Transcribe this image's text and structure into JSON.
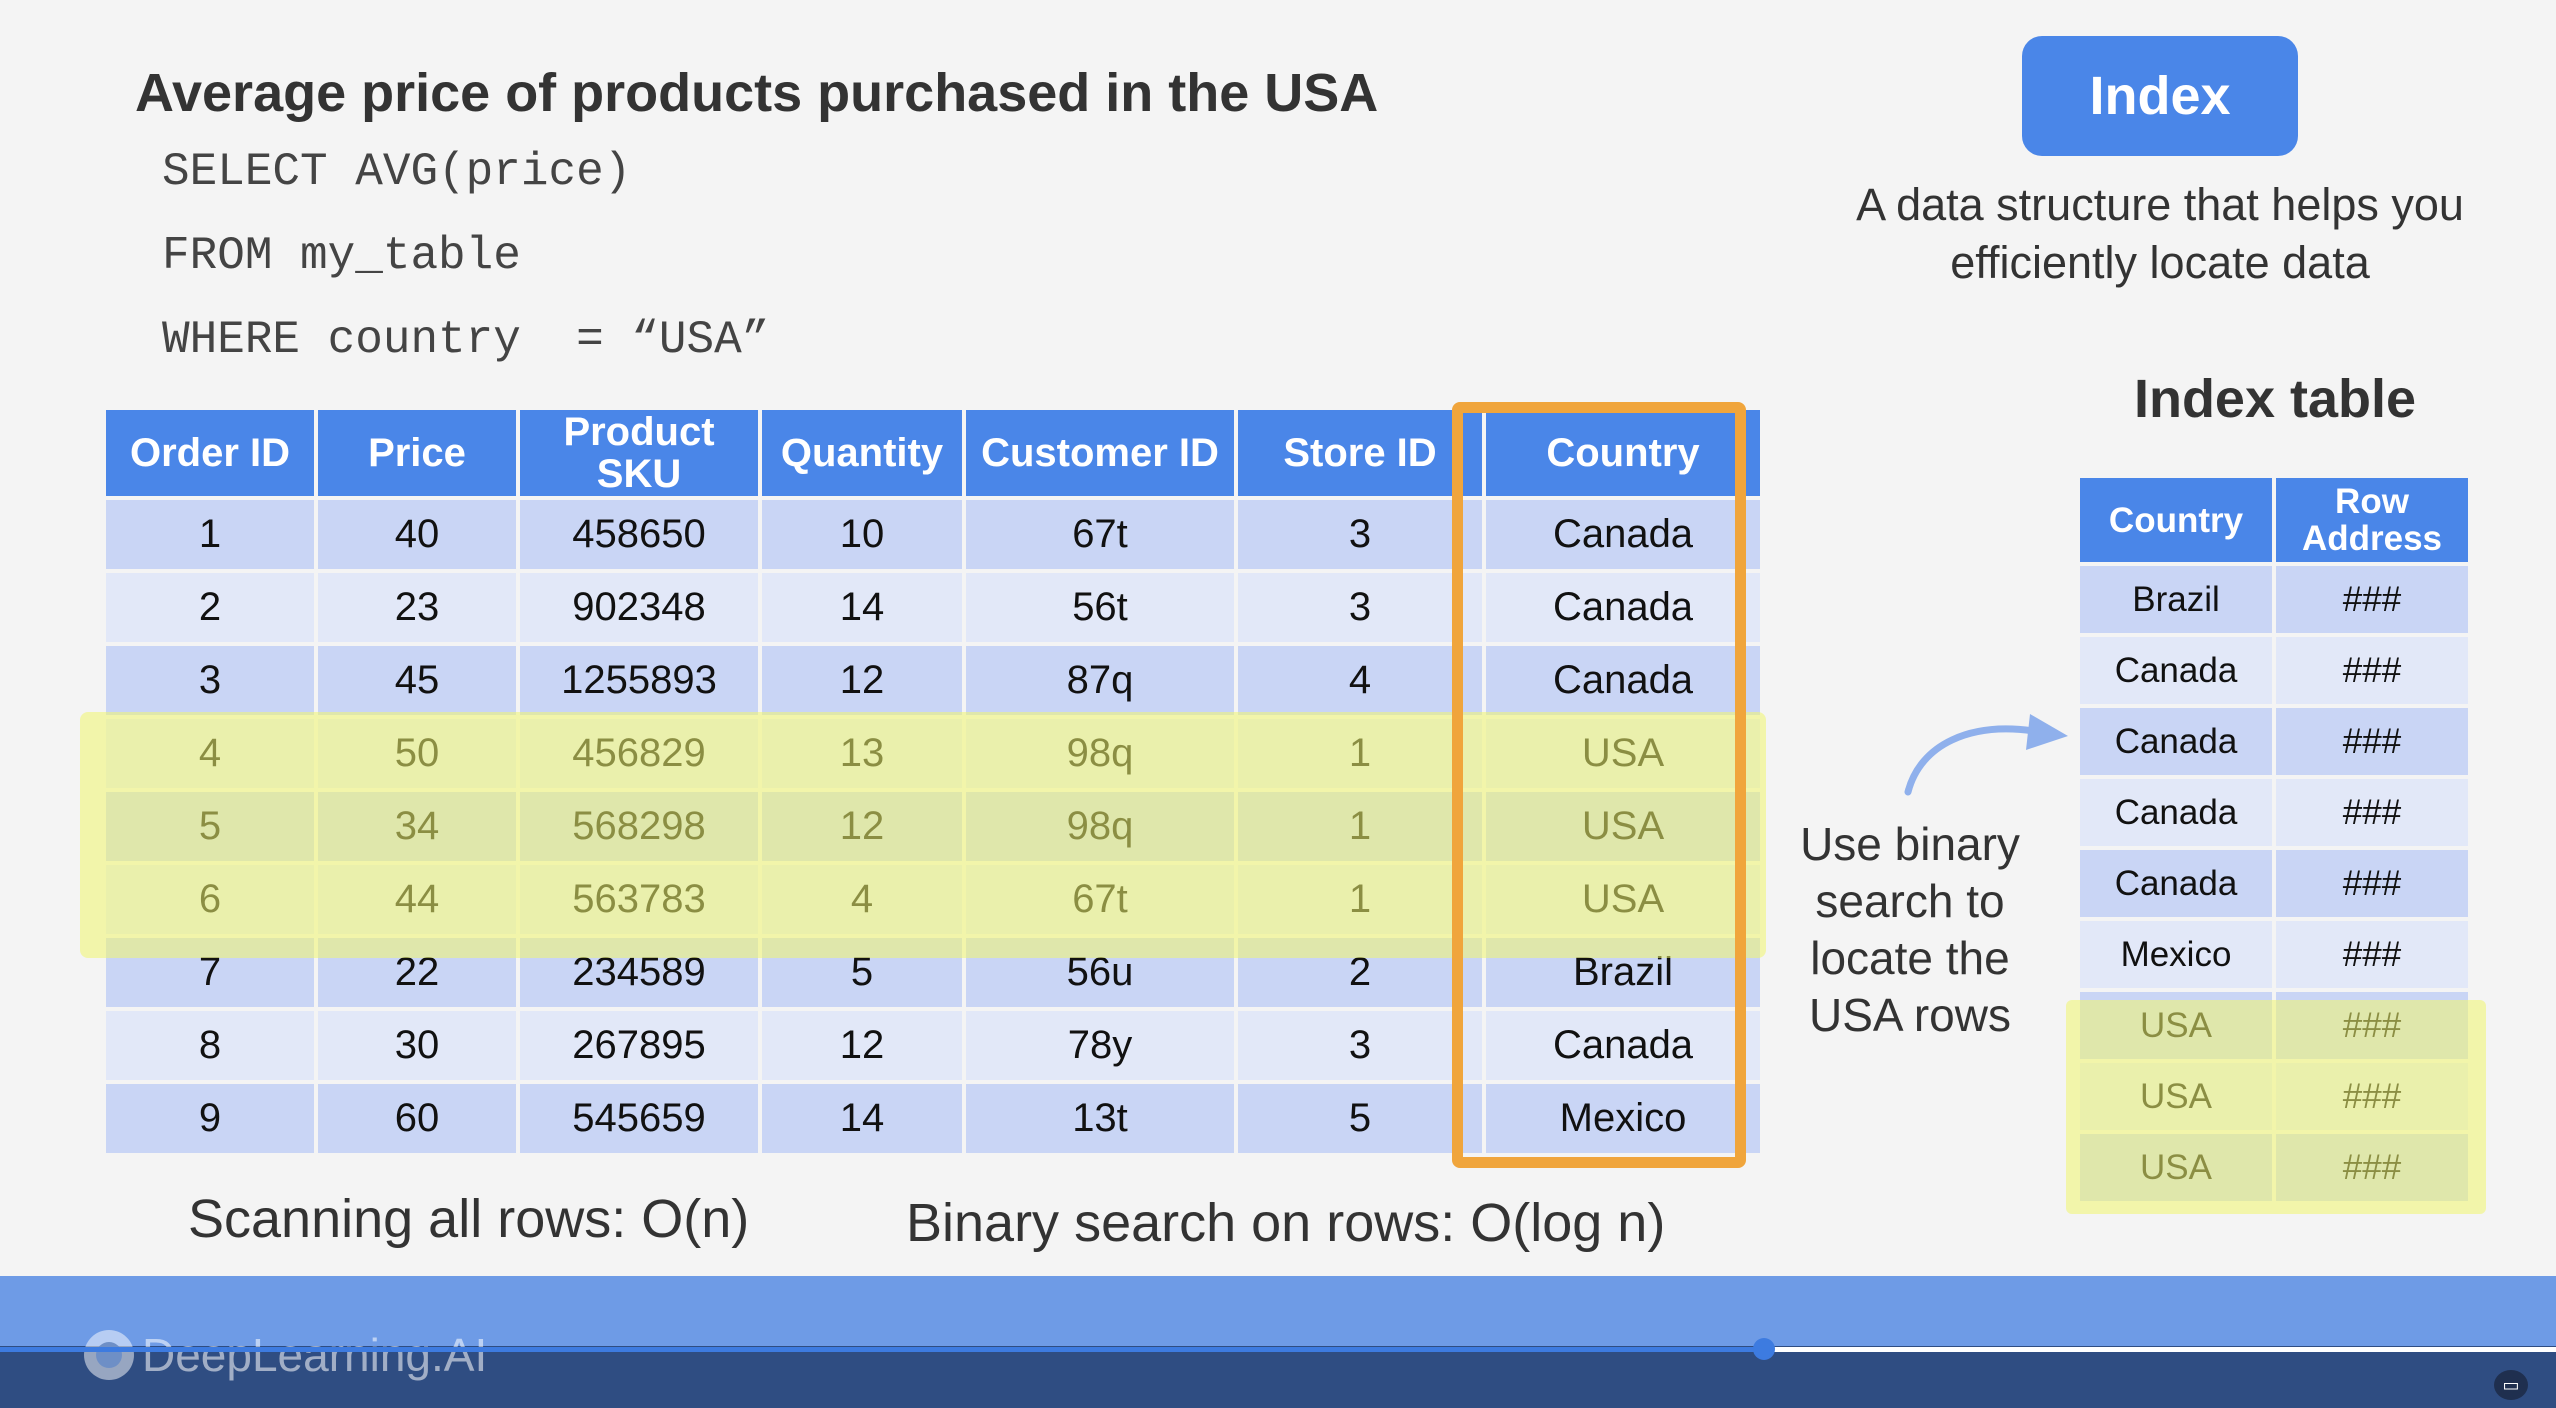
{
  "slide": {
    "title": "Average price of products purchased in the USA",
    "sql": [
      "SELECT AVG(price)",
      "FROM my_table",
      "WHERE country  = “USA”"
    ]
  },
  "index_box": {
    "label": "Index",
    "description": "A data structure that helps you efficiently locate data"
  },
  "main_table": {
    "headers": [
      "Order ID",
      "Price",
      "Product SKU",
      "Quantity",
      "Customer ID",
      "Store ID",
      "Country"
    ],
    "rows": [
      [
        "1",
        "40",
        "458650",
        "10",
        "67t",
        "3",
        "Canada"
      ],
      [
        "2",
        "23",
        "902348",
        "14",
        "56t",
        "3",
        "Canada"
      ],
      [
        "3",
        "45",
        "1255893",
        "12",
        "87q",
        "4",
        "Canada"
      ],
      [
        "4",
        "50",
        "456829",
        "13",
        "98q",
        "1",
        "USA"
      ],
      [
        "5",
        "34",
        "568298",
        "12",
        "98q",
        "1",
        "USA"
      ],
      [
        "6",
        "44",
        "563783",
        "4",
        "67t",
        "1",
        "USA"
      ],
      [
        "7",
        "22",
        "234589",
        "5",
        "56u",
        "2",
        "Brazil"
      ],
      [
        "8",
        "30",
        "267895",
        "12",
        "78y",
        "3",
        "Canada"
      ],
      [
        "9",
        "60",
        "545659",
        "14",
        "13t",
        "5",
        "Mexico"
      ]
    ]
  },
  "notes": {
    "scan": "Scanning all rows: O(n)",
    "binary": "Binary search on rows: O(log n)",
    "binary_search_hint": "Use binary search to locate the USA rows"
  },
  "index_table": {
    "title": "Index table",
    "headers": [
      "Country",
      "Row Address"
    ],
    "rows": [
      [
        "Brazil",
        "###"
      ],
      [
        "Canada",
        "###"
      ],
      [
        "Canada",
        "###"
      ],
      [
        "Canada",
        "###"
      ],
      [
        "Canada",
        "###"
      ],
      [
        "Mexico",
        "###"
      ],
      [
        "USA",
        "###"
      ],
      [
        "USA",
        "###"
      ],
      [
        "USA",
        "###"
      ]
    ]
  },
  "player": {
    "logo_text": "DeepLearning.AI",
    "progress": 0.69,
    "captions_icon": "captions-icon"
  },
  "colors": {
    "header_blue": "#4a86e8",
    "highlight_yellow": "#f0f56e",
    "outline_orange": "#f0a53c"
  }
}
